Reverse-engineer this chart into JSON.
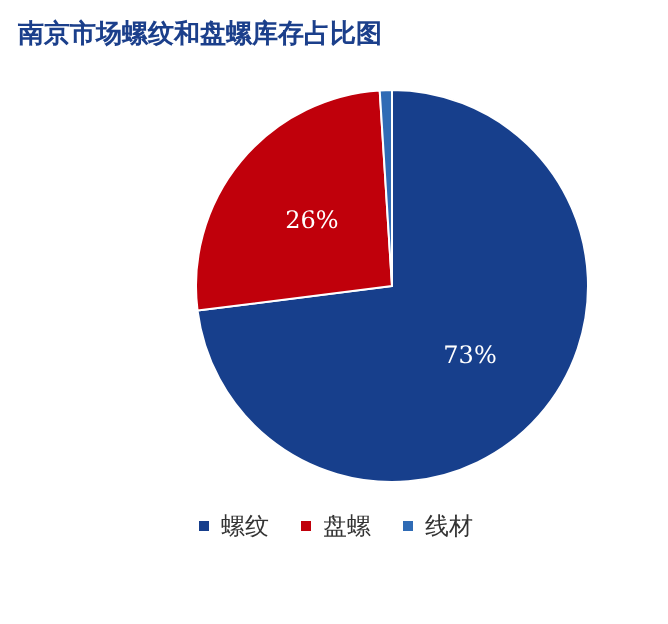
{
  "chart_data": {
    "type": "pie",
    "title": "南京市场螺纹和盘螺库存占比图",
    "categories": [
      "螺纹",
      "盘螺",
      "线材"
    ],
    "values": [
      73,
      26,
      1
    ],
    "colors": [
      "#173f8c",
      "#c0000b",
      "#2f6bb5"
    ],
    "value_labels": [
      "73%",
      "26%",
      null
    ],
    "legend": "bottom"
  }
}
